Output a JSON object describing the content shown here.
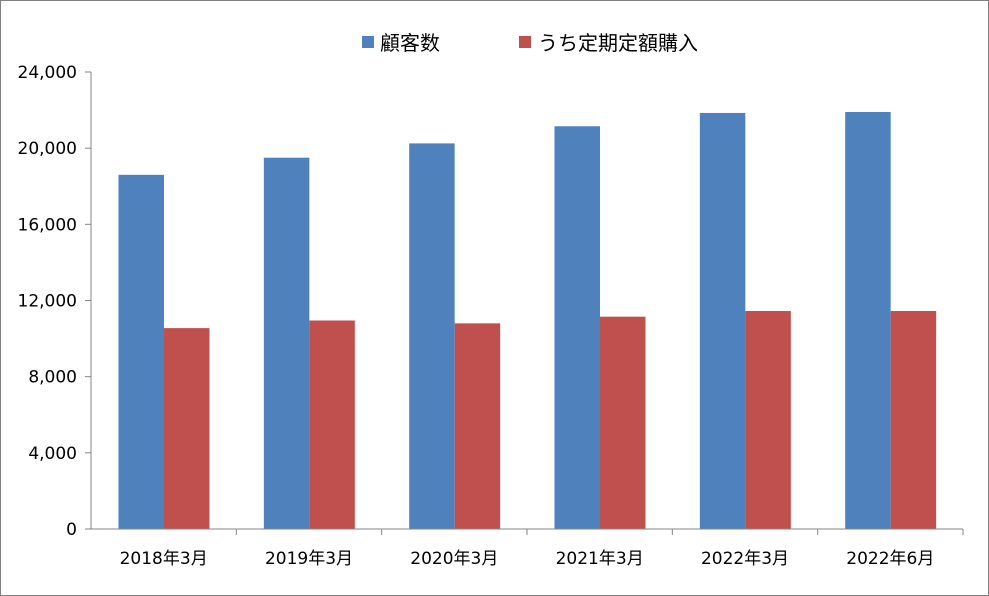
{
  "chart_data": {
    "type": "bar",
    "categories": [
      "2018年3月",
      "2019年3月",
      "2020年3月",
      "2021年3月",
      "2022年3月",
      "2022年6月"
    ],
    "series": [
      {
        "name": "顧客数",
        "color": "#4F81BD",
        "values": [
          18600,
          19500,
          20250,
          21150,
          21850,
          21900
        ]
      },
      {
        "name": "うち定期定額購入",
        "color": "#C0504D",
        "values": [
          10550,
          10950,
          10800,
          11150,
          11450,
          11450
        ]
      }
    ],
    "y_ticks": [
      "0",
      "4,000",
      "8,000",
      "12,000",
      "16,000",
      "20,000",
      "24,000"
    ],
    "ylim": [
      0,
      24000
    ],
    "grid": false,
    "legend_position": "top-center"
  }
}
